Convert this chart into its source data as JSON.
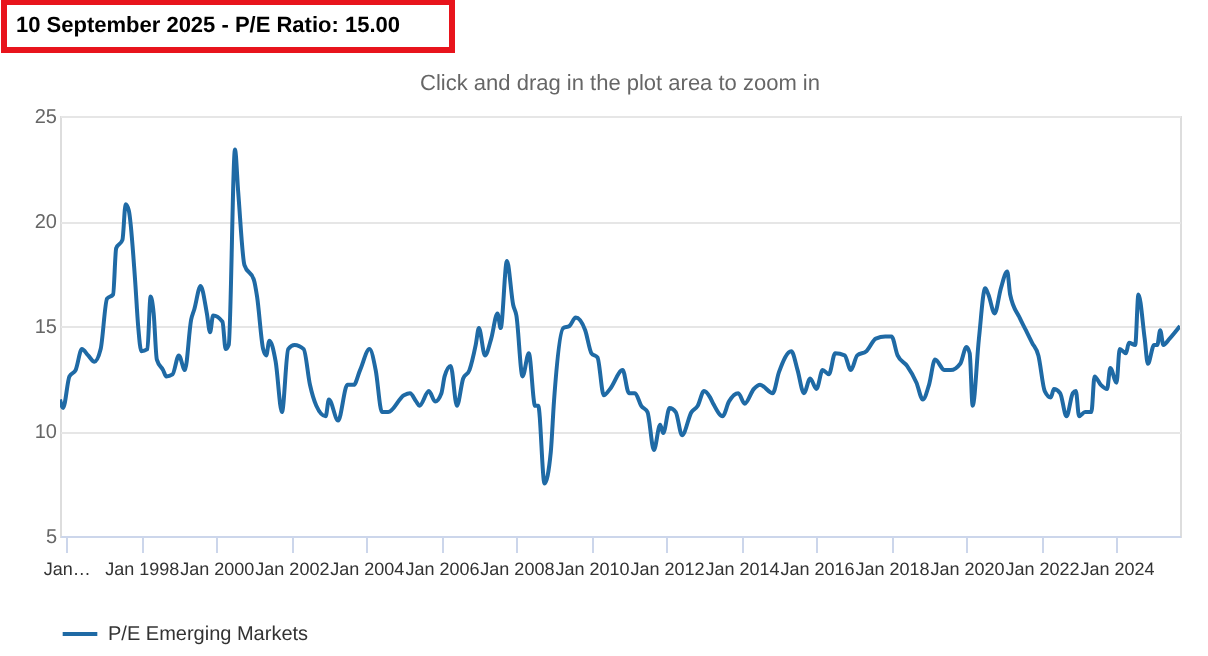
{
  "chart_data": {
    "type": "line",
    "title": "10 September 2025 - P/E Ratio: 15.00",
    "subtitle": "Click and drag in the plot area to zoom in",
    "series": [
      {
        "name": "P/E Emerging Markets",
        "color": "#1f6aa5",
        "x": [
          "1995-11",
          "1995-12",
          "1996-02",
          "1996-04",
          "1996-06",
          "1996-08",
          "1996-10",
          "1996-12",
          "1997-02",
          "1997-04",
          "1997-05",
          "1997-07",
          "1997-08",
          "1997-09",
          "1997-11",
          "1997-12",
          "1998-01",
          "1998-03",
          "1998-04",
          "1998-05",
          "1998-06",
          "1998-08",
          "1998-09",
          "1998-11",
          "1999-01",
          "1999-03",
          "1999-05",
          "1999-06",
          "1999-08",
          "1999-10",
          "1999-11",
          "1999-12",
          "2000-03",
          "2000-04",
          "2000-05",
          "2000-07",
          "2000-08",
          "2000-10",
          "2001-01",
          "2001-02",
          "2001-04",
          "2001-05",
          "2001-06",
          "2001-08",
          "2001-10",
          "2001-12",
          "2002-02",
          "2002-05",
          "2002-07",
          "2002-09",
          "2002-12",
          "2003-01",
          "2003-04",
          "2003-07",
          "2003-09",
          "2003-11",
          "2004-02",
          "2004-04",
          "2004-06",
          "2004-08",
          "2005-01",
          "2005-03",
          "2005-05",
          "2005-06",
          "2005-09",
          "2005-11",
          "2006-01",
          "2006-02",
          "2006-04",
          "2006-06",
          "2006-08",
          "2006-10",
          "2006-12",
          "2007-01",
          "2007-03",
          "2007-05",
          "2007-07",
          "2007-08",
          "2007-10",
          "2007-12",
          "2008-01",
          "2008-03",
          "2008-05",
          "2008-07",
          "2008-08",
          "2008-10",
          "2008-12",
          "2009-01",
          "2009-04",
          "2009-06",
          "2009-08",
          "2009-11",
          "2010-01",
          "2010-03",
          "2010-05",
          "2010-07",
          "2010-11",
          "2011-01",
          "2011-03",
          "2011-05",
          "2011-07",
          "2011-09",
          "2011-11",
          "2011-12",
          "2012-02",
          "2012-04",
          "2012-06",
          "2012-09",
          "2012-11",
          "2013-01",
          "2013-03",
          "2013-04",
          "2013-07",
          "2013-09",
          "2013-12",
          "2014-02",
          "2014-05",
          "2014-07",
          "2014-11",
          "2015-01",
          "2015-05",
          "2015-07",
          "2015-09",
          "2015-11",
          "2016-01",
          "2016-03",
          "2016-05",
          "2016-07",
          "2016-10",
          "2016-12",
          "2017-02",
          "2017-05",
          "2017-08",
          "2017-11",
          "2018-01",
          "2018-03",
          "2018-06",
          "2018-09",
          "2018-11",
          "2019-01",
          "2019-03",
          "2019-06",
          "2019-08",
          "2019-11",
          "2020-01",
          "2020-02",
          "2020-03",
          "2020-05",
          "2020-07",
          "2020-08",
          "2020-10",
          "2020-12",
          "2021-02",
          "2021-03",
          "2021-06",
          "2021-08",
          "2021-10",
          "2021-12",
          "2022-02",
          "2022-04",
          "2022-05",
          "2022-07",
          "2022-09",
          "2022-11",
          "2022-12",
          "2023-01",
          "2023-03",
          "2023-05",
          "2023-06",
          "2023-08",
          "2023-10",
          "2023-11",
          "2024-01",
          "2024-02",
          "2024-04",
          "2024-05",
          "2024-07",
          "2024-08",
          "2024-10",
          "2024-11",
          "2025-01",
          "2025-02",
          "2025-03",
          "2025-04",
          "2025-06",
          "2025-09-10"
        ],
        "values": [
          11.5,
          11.1,
          12.6,
          12.9,
          13.9,
          13.6,
          13.3,
          13.9,
          16.3,
          16.5,
          18.7,
          19.1,
          20.8,
          20.5,
          17.2,
          15.0,
          13.8,
          13.9,
          16.4,
          15.6,
          13.4,
          12.9,
          12.6,
          12.7,
          13.6,
          12.9,
          15.3,
          15.8,
          16.9,
          15.6,
          14.7,
          15.5,
          15.2,
          13.9,
          14.1,
          23.4,
          21.4,
          17.9,
          17.2,
          16.4,
          13.9,
          13.6,
          14.3,
          13.3,
          10.9,
          13.9,
          14.1,
          13.9,
          12.2,
          11.2,
          10.7,
          11.5,
          10.5,
          12.2,
          12.2,
          12.9,
          13.9,
          12.9,
          10.9,
          10.9,
          11.7,
          11.8,
          11.4,
          11.2,
          11.9,
          11.4,
          11.8,
          12.6,
          13.1,
          11.2,
          12.5,
          12.9,
          14.1,
          14.9,
          13.6,
          14.4,
          15.6,
          14.9,
          18.1,
          16.0,
          15.5,
          12.6,
          13.7,
          11.2,
          11.2,
          7.5,
          9.0,
          11.4,
          14.9,
          15.0,
          15.4,
          14.8,
          13.7,
          13.5,
          11.7,
          12.0,
          12.9,
          11.8,
          11.8,
          11.2,
          10.9,
          9.1,
          10.3,
          9.9,
          11.1,
          10.9,
          9.8,
          10.9,
          11.2,
          11.9,
          11.6,
          11.3,
          10.7,
          11.4,
          11.8,
          11.3,
          12.0,
          12.2,
          11.8,
          12.8,
          13.8,
          12.9,
          11.8,
          12.5,
          12.0,
          12.9,
          12.7,
          13.7,
          13.6,
          12.9,
          13.6,
          13.8,
          14.4,
          14.5,
          14.5,
          13.6,
          13.1,
          12.3,
          11.5,
          12.2,
          13.4,
          12.9,
          12.9,
          13.2,
          14.0,
          13.7,
          11.2,
          14.4,
          16.8,
          16.5,
          15.6,
          16.8,
          17.6,
          16.5,
          15.4,
          14.8,
          14.2,
          13.6,
          11.9,
          11.6,
          12.0,
          11.8,
          10.7,
          11.8,
          11.9,
          10.7,
          10.9,
          10.9,
          12.6,
          12.2,
          12.0,
          13.0,
          12.3,
          13.9,
          13.7,
          14.2,
          14.1,
          16.5,
          14.4,
          13.2,
          14.1,
          14.1,
          14.8,
          14.1,
          14.4,
          15.0
        ]
      }
    ],
    "xlim": [
      "1995-11",
      "2025-09-10"
    ],
    "xticks": [
      {
        "value": "1996-01",
        "label": "Jan…"
      },
      {
        "value": "1998-01",
        "label": "Jan 1998"
      },
      {
        "value": "2000-01",
        "label": "Jan 2000"
      },
      {
        "value": "2002-01",
        "label": "Jan 2002"
      },
      {
        "value": "2004-01",
        "label": "Jan 2004"
      },
      {
        "value": "2006-01",
        "label": "Jan 2006"
      },
      {
        "value": "2008-01",
        "label": "Jan 2008"
      },
      {
        "value": "2010-01",
        "label": "Jan 2010"
      },
      {
        "value": "2012-01",
        "label": "Jan 2012"
      },
      {
        "value": "2014-01",
        "label": "Jan 2014"
      },
      {
        "value": "2016-01",
        "label": "Jan 2016"
      },
      {
        "value": "2018-01",
        "label": "Jan 2018"
      },
      {
        "value": "2020-01",
        "label": "Jan 2020"
      },
      {
        "value": "2022-01",
        "label": "Jan 2022"
      },
      {
        "value": "2024-01",
        "label": "Jan 2024"
      }
    ],
    "ylim": [
      5,
      25
    ],
    "yticks": [
      5,
      10,
      15,
      20,
      25
    ],
    "grid": "y",
    "legend": "bottom",
    "marker": "none",
    "line_style": "solid"
  }
}
